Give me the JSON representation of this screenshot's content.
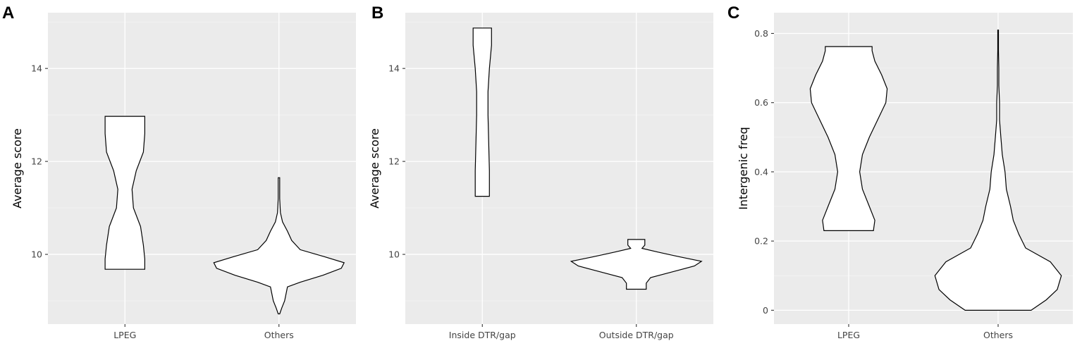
{
  "chart_data": [
    {
      "type": "violin",
      "panel_label": "A",
      "ylabel": "Average score",
      "categories": [
        "LPEG",
        "Others"
      ],
      "ylim": [
        8.5,
        15.2
      ],
      "yticks": [
        10,
        12,
        14
      ],
      "ytick_labels": [
        "10",
        "12",
        "14"
      ],
      "grid": true,
      "series": [
        {
          "category": "LPEG",
          "profile": [
            [
              9.68,
              0.28
            ],
            [
              9.9,
              0.28
            ],
            [
              10.2,
              0.26
            ],
            [
              10.6,
              0.22
            ],
            [
              11.0,
              0.12
            ],
            [
              11.4,
              0.1
            ],
            [
              11.8,
              0.16
            ],
            [
              12.2,
              0.26
            ],
            [
              12.6,
              0.28
            ],
            [
              12.97,
              0.28
            ]
          ]
        },
        {
          "category": "Others",
          "profile": [
            [
              8.72,
              0.01
            ],
            [
              8.85,
              0.04
            ],
            [
              9.0,
              0.08
            ],
            [
              9.15,
              0.1
            ],
            [
              9.3,
              0.12
            ],
            [
              9.4,
              0.3
            ],
            [
              9.55,
              0.62
            ],
            [
              9.7,
              0.88
            ],
            [
              9.82,
              0.92
            ],
            [
              9.95,
              0.64
            ],
            [
              10.1,
              0.3
            ],
            [
              10.3,
              0.18
            ],
            [
              10.5,
              0.12
            ],
            [
              10.7,
              0.05
            ],
            [
              10.9,
              0.02
            ],
            [
              11.2,
              0.01
            ],
            [
              11.4,
              0.01
            ],
            [
              11.65,
              0.01
            ]
          ]
        }
      ]
    },
    {
      "type": "violin",
      "panel_label": "B",
      "ylabel": "Average score",
      "categories": [
        "Inside DTR/gap",
        "Outside DTR/gap"
      ],
      "ylim": [
        8.5,
        15.2
      ],
      "yticks": [
        10,
        12,
        14
      ],
      "ytick_labels": [
        "10",
        "12",
        "14"
      ],
      "grid": true,
      "series": [
        {
          "category": "Inside DTR/gap",
          "profile": [
            [
              11.25,
              0.1
            ],
            [
              11.8,
              0.1
            ],
            [
              12.4,
              0.09
            ],
            [
              13.0,
              0.08
            ],
            [
              13.5,
              0.08
            ],
            [
              14.0,
              0.1
            ],
            [
              14.5,
              0.13
            ],
            [
              14.87,
              0.13
            ]
          ]
        },
        {
          "category": "Outside DTR/gap",
          "profile": [
            [
              9.25,
              0.14
            ],
            [
              9.38,
              0.14
            ],
            [
              9.5,
              0.2
            ],
            [
              9.62,
              0.5
            ],
            [
              9.75,
              0.82
            ],
            [
              9.85,
              0.92
            ],
            [
              9.95,
              0.6
            ],
            [
              10.05,
              0.3
            ],
            [
              10.13,
              0.08
            ],
            [
              10.2,
              0.12
            ],
            [
              10.28,
              0.12
            ],
            [
              10.32,
              0.12
            ]
          ]
        }
      ]
    },
    {
      "type": "violin",
      "panel_label": "C",
      "ylabel": "Intergenic freq",
      "categories": [
        "LPEG",
        "Others"
      ],
      "ylim": [
        -0.04,
        0.86
      ],
      "yticks": [
        0,
        0.2,
        0.4,
        0.6,
        0.8
      ],
      "ytick_labels": [
        "0",
        "0.2",
        "0.4",
        "0.6",
        "0.8"
      ],
      "grid": true,
      "series": [
        {
          "category": "LPEG",
          "profile": [
            [
              0.23,
              0.36
            ],
            [
              0.26,
              0.38
            ],
            [
              0.3,
              0.3
            ],
            [
              0.35,
              0.2
            ],
            [
              0.4,
              0.16
            ],
            [
              0.45,
              0.2
            ],
            [
              0.5,
              0.3
            ],
            [
              0.55,
              0.42
            ],
            [
              0.6,
              0.54
            ],
            [
              0.64,
              0.56
            ],
            [
              0.68,
              0.48
            ],
            [
              0.72,
              0.38
            ],
            [
              0.75,
              0.34
            ],
            [
              0.762,
              0.34
            ]
          ]
        },
        {
          "category": "Others",
          "profile": [
            [
              0.0,
              0.48
            ],
            [
              0.03,
              0.7
            ],
            [
              0.06,
              0.86
            ],
            [
              0.1,
              0.92
            ],
            [
              0.14,
              0.76
            ],
            [
              0.18,
              0.4
            ],
            [
              0.22,
              0.3
            ],
            [
              0.26,
              0.22
            ],
            [
              0.3,
              0.18
            ],
            [
              0.35,
              0.12
            ],
            [
              0.4,
              0.1
            ],
            [
              0.45,
              0.06
            ],
            [
              0.5,
              0.04
            ],
            [
              0.55,
              0.02
            ],
            [
              0.6,
              0.02
            ],
            [
              0.65,
              0.01
            ],
            [
              0.7,
              0.01
            ],
            [
              0.75,
              0.005
            ],
            [
              0.81,
              0.005
            ]
          ]
        }
      ]
    }
  ]
}
